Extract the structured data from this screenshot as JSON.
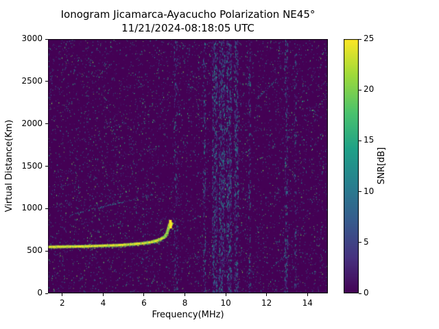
{
  "figure": {
    "title_line1": "Ionogram Jicamarca-Ayacucho Polarization NE45°",
    "title_line2": "11/21/2024-08:18:05 UTC",
    "background_color": "#ffffff"
  },
  "chart_data": {
    "type": "heatmap",
    "title": "Ionogram Jicamarca-Ayacucho Polarization NE45°",
    "subtitle": "11/21/2024-08:18:05 UTC",
    "xlabel": "Frequency(MHz)",
    "ylabel": "Virtual Distance(Km)",
    "xlim": [
      1.3,
      15.0
    ],
    "ylim": [
      0,
      3000
    ],
    "xticks": [
      2,
      4,
      6,
      8,
      10,
      12,
      14
    ],
    "yticks": [
      0,
      500,
      1000,
      1500,
      2000,
      2500,
      3000
    ],
    "grid": false,
    "legend": "none",
    "colormap": "viridis",
    "colors": {
      "background_min": "#440154",
      "echo_max": "#fde725"
    },
    "colorbar": {
      "label": "SNR[dB]",
      "ticks": [
        0,
        5,
        10,
        15,
        20,
        25
      ],
      "min": 0,
      "max": 25,
      "position": "right"
    },
    "noise": {
      "speckle_count": 9000,
      "seed": 42,
      "max_snr_db": 20
    },
    "rfi_bands": [
      {
        "freq": 7.55,
        "width": 0.18,
        "density": 0.22
      },
      {
        "freq": 8.95,
        "width": 0.12,
        "density": 0.25
      },
      {
        "freq": 9.45,
        "width": 0.25,
        "density": 0.75
      },
      {
        "freq": 9.8,
        "width": 0.3,
        "density": 0.9
      },
      {
        "freq": 10.15,
        "width": 0.25,
        "density": 0.8
      },
      {
        "freq": 10.5,
        "width": 0.2,
        "density": 0.55
      },
      {
        "freq": 11.15,
        "width": 0.1,
        "density": 0.18
      },
      {
        "freq": 12.95,
        "width": 0.15,
        "density": 0.3
      },
      {
        "freq": 13.4,
        "width": 0.1,
        "density": 0.15
      }
    ],
    "echo_trace": {
      "snr_db": 25,
      "points": [
        [
          1.35,
          547
        ],
        [
          2.0,
          550
        ],
        [
          2.5,
          552
        ],
        [
          3.0,
          554
        ],
        [
          3.5,
          557
        ],
        [
          4.0,
          561
        ],
        [
          4.5,
          566
        ],
        [
          5.0,
          572
        ],
        [
          5.5,
          581
        ],
        [
          6.0,
          593
        ],
        [
          6.3,
          603
        ],
        [
          6.6,
          619
        ],
        [
          6.8,
          637
        ],
        [
          7.0,
          666
        ],
        [
          7.1,
          697
        ],
        [
          7.15,
          731
        ],
        [
          7.2,
          772
        ],
        [
          7.24,
          812
        ]
      ],
      "cusp_points": [
        [
          7.3,
          790
        ],
        [
          7.33,
          822
        ],
        [
          7.29,
          850
        ]
      ],
      "critical_frequency_mhz": 7.25,
      "base_virtual_height_km": 550
    },
    "secondary_streaks": [
      {
        "from": [
          2.4,
          930
        ],
        "to": [
          6.4,
          1170
        ],
        "density": 0.35
      },
      {
        "from": [
          11.4,
          2280
        ],
        "to": [
          12.5,
          2530
        ],
        "density": 0.4
      },
      {
        "from": [
          12.2,
          310
        ],
        "to": [
          13.0,
          470
        ],
        "density": 0.3
      },
      {
        "from": [
          1.9,
          1260
        ],
        "to": [
          2.6,
          1310
        ],
        "density": 0.25
      }
    ]
  }
}
